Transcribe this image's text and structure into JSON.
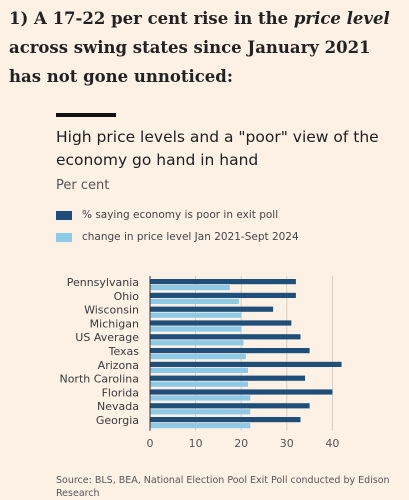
{
  "heading": {
    "before": "1) A 17-22 per cent rise in the ",
    "emphasis": "price level",
    "after": " across swing states since January 2021 has not gone unnoticed:"
  },
  "chart_data": {
    "type": "bar",
    "orientation": "horizontal",
    "title": "High price levels and a \"poor\" view of the economy go hand in hand",
    "unit": "Per cent",
    "categories": [
      "Pennsylvania",
      "Ohio",
      "Wisconsin",
      "Michigan",
      "US Average",
      "Texas",
      "Arizona",
      "North Carolina",
      "Florida",
      "Nevada",
      "Georgia"
    ],
    "series": [
      {
        "name": "% saying economy is poor in exit poll",
        "color": "#1f4e79",
        "values": [
          32,
          32,
          27,
          31,
          33,
          35,
          42,
          34,
          40,
          35,
          33
        ]
      },
      {
        "name": "change in price level Jan 2021-Sept 2024",
        "color": "#8ecae6",
        "values": [
          17.5,
          19.5,
          20,
          20,
          20.5,
          21,
          21.5,
          21.5,
          22,
          22,
          22
        ]
      }
    ],
    "xlim": [
      0,
      45
    ],
    "xticks": [
      "0",
      "10",
      "20",
      "30",
      "40"
    ],
    "grid": true,
    "legend_position": "top-left",
    "source": "Source: BLS, BEA, National Election Pool Exit Poll conducted by Edison Research"
  }
}
